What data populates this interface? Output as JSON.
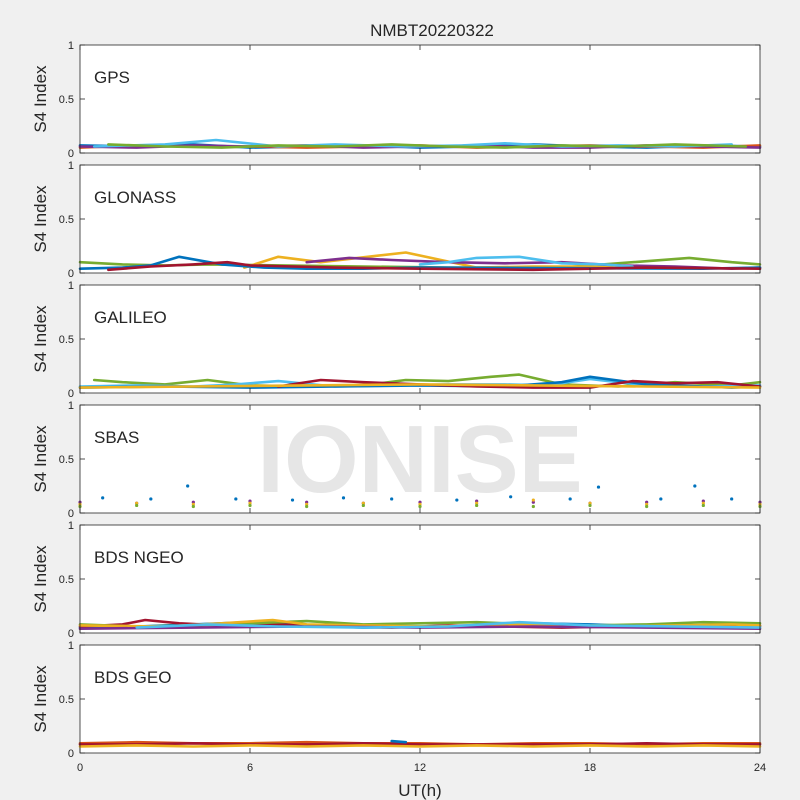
{
  "chart_data": {
    "type": "scatter",
    "title": "NMBT20220322",
    "xlabel": "UT(h)",
    "ylabel": "S4 Index",
    "xlim": [
      0,
      24
    ],
    "ylim": [
      0,
      1
    ],
    "xticks": [
      0,
      6,
      12,
      18,
      24
    ],
    "yticks": [
      0,
      0.5,
      1
    ],
    "x_tick_labels": [
      "0",
      "6",
      "12",
      "18",
      "24"
    ],
    "y_tick_labels": [
      "0",
      "0.5",
      "1"
    ],
    "watermark": "IONISE",
    "grid": false,
    "colors": [
      "#0072BD",
      "#D95319",
      "#EDB120",
      "#7E2F8E",
      "#77AC30",
      "#4DBEEE",
      "#A2142F"
    ],
    "panels": [
      {
        "name": "GPS",
        "series": [
          {
            "color": "#0072BD",
            "x": [
              0,
              2,
              4,
              6,
              8,
              10,
              12,
              14,
              16,
              18,
              20,
              22,
              24
            ],
            "y": [
              0.07,
              0.06,
              0.08,
              0.05,
              0.06,
              0.07,
              0.05,
              0.06,
              0.08,
              0.06,
              0.05,
              0.07,
              0.06
            ]
          },
          {
            "color": "#D95319",
            "x": [
              0,
              2,
              4,
              6,
              8,
              10,
              12,
              14,
              16,
              18,
              20,
              22,
              24
            ],
            "y": [
              0.05,
              0.07,
              0.06,
              0.06,
              0.05,
              0.06,
              0.07,
              0.05,
              0.06,
              0.07,
              0.06,
              0.05,
              0.07
            ]
          },
          {
            "color": "#7E2F8E",
            "x": [
              0,
              2,
              4,
              6,
              8,
              10,
              12,
              14,
              16,
              18,
              20,
              22,
              24
            ],
            "y": [
              0.06,
              0.05,
              0.07,
              0.06,
              0.07,
              0.05,
              0.06,
              0.07,
              0.05,
              0.05,
              0.07,
              0.06,
              0.05
            ]
          },
          {
            "color": "#4DBEEE",
            "x": [
              0.5,
              3,
              4.8,
              7,
              9,
              11.5,
              13.5,
              15,
              17,
              19,
              21,
              23
            ],
            "y": [
              0.06,
              0.08,
              0.12,
              0.06,
              0.08,
              0.06,
              0.07,
              0.09,
              0.06,
              0.07,
              0.06,
              0.08
            ]
          },
          {
            "color": "#77AC30",
            "x": [
              1,
              3,
              5,
              7,
              9,
              11,
              13,
              15,
              17,
              19,
              21,
              23.5
            ],
            "y": [
              0.08,
              0.06,
              0.05,
              0.07,
              0.06,
              0.08,
              0.06,
              0.05,
              0.07,
              0.06,
              0.08,
              0.06
            ]
          }
        ]
      },
      {
        "name": "GLONASS",
        "series": [
          {
            "color": "#77AC30",
            "x": [
              0,
              1.5,
              3,
              4.5,
              10,
              13,
              17,
              21.5,
              23,
              24
            ],
            "y": [
              0.1,
              0.08,
              0.07,
              0.08,
              0.06,
              0.05,
              0.05,
              0.14,
              0.1,
              0.08
            ]
          },
          {
            "color": "#EDB120",
            "x": [
              5.8,
              7,
              8.5,
              10.5,
              11.5,
              14,
              16,
              18,
              20
            ],
            "y": [
              0.05,
              0.15,
              0.1,
              0.16,
              0.19,
              0.05,
              0.06,
              0.06,
              0.05
            ]
          },
          {
            "color": "#7E2F8E",
            "x": [
              8,
              9.5,
              11,
              13,
              15,
              17,
              19,
              21,
              23,
              24
            ],
            "y": [
              0.1,
              0.14,
              0.12,
              0.1,
              0.09,
              0.1,
              0.07,
              0.06,
              0.04,
              0.05
            ]
          },
          {
            "color": "#4DBEEE",
            "x": [
              12,
              13,
              14,
              15.5,
              17,
              18.5,
              19.5
            ],
            "y": [
              0.08,
              0.1,
              0.14,
              0.15,
              0.09,
              0.08,
              0.06
            ]
          },
          {
            "color": "#0072BD",
            "x": [
              0,
              1.5,
              2.5,
              3.5,
              5,
              6.5,
              8,
              10,
              12,
              22,
              24
            ],
            "y": [
              0.04,
              0.05,
              0.07,
              0.15,
              0.08,
              0.05,
              0.04,
              0.04,
              0.05,
              0.04,
              0.05
            ]
          },
          {
            "color": "#A2142F",
            "x": [
              1,
              2.5,
              4,
              5.2,
              6,
              9,
              12,
              16,
              20,
              24
            ],
            "y": [
              0.03,
              0.06,
              0.08,
              0.1,
              0.07,
              0.05,
              0.04,
              0.03,
              0.05,
              0.04
            ]
          }
        ]
      },
      {
        "name": "GALILEO",
        "series": [
          {
            "color": "#77AC30",
            "x": [
              0.5,
              1.5,
              3,
              4.5,
              6,
              8,
              10,
              11.5,
              13,
              14.5,
              15.5,
              17,
              19,
              21,
              23,
              24
            ],
            "y": [
              0.12,
              0.1,
              0.08,
              0.12,
              0.07,
              0.06,
              0.07,
              0.12,
              0.11,
              0.15,
              0.17,
              0.08,
              0.06,
              0.1,
              0.07,
              0.1
            ]
          },
          {
            "color": "#4DBEEE",
            "x": [
              0,
              2,
              4,
              5.5,
              7,
              9,
              11,
              13,
              15,
              16.5,
              18,
              20,
              22,
              24
            ],
            "y": [
              0.06,
              0.07,
              0.06,
              0.08,
              0.11,
              0.06,
              0.07,
              0.08,
              0.08,
              0.07,
              0.13,
              0.07,
              0.06,
              0.07
            ]
          },
          {
            "color": "#0072BD",
            "x": [
              0,
              3,
              6,
              9,
              12,
              15,
              17,
              18,
              20,
              23,
              24
            ],
            "y": [
              0.05,
              0.06,
              0.05,
              0.06,
              0.07,
              0.06,
              0.1,
              0.15,
              0.08,
              0.05,
              0.06
            ]
          },
          {
            "color": "#A2142F",
            "x": [
              7,
              8.5,
              10,
              12,
              14,
              16,
              18,
              19.5,
              21,
              22.5,
              24
            ],
            "y": [
              0.06,
              0.12,
              0.1,
              0.08,
              0.06,
              0.05,
              0.05,
              0.11,
              0.09,
              0.1,
              0.06
            ]
          },
          {
            "color": "#EDB120",
            "x": [
              0,
              4,
              8,
              12,
              16,
              20,
              24
            ],
            "y": [
              0.05,
              0.06,
              0.07,
              0.08,
              0.07,
              0.06,
              0.05
            ]
          }
        ]
      },
      {
        "name": "SBAS",
        "series": [
          {
            "color": "#7E2F8E",
            "x": [
              0,
              2,
              4,
              6,
              8,
              10,
              12,
              14,
              16,
              18,
              20,
              22,
              24
            ],
            "y": [
              0.1,
              0.09,
              0.1,
              0.11,
              0.1,
              0.09,
              0.1,
              0.11,
              0.1,
              0.09,
              0.1,
              0.11,
              0.1
            ]
          },
          {
            "color": "#EDB120",
            "x": [
              0,
              2,
              4,
              6,
              8,
              10,
              12,
              14,
              16,
              18,
              20,
              22,
              24
            ],
            "y": [
              0.08,
              0.09,
              0.08,
              0.09,
              0.08,
              0.09,
              0.08,
              0.09,
              0.12,
              0.09,
              0.08,
              0.09,
              0.08
            ]
          },
          {
            "color": "#77AC30",
            "x": [
              0,
              2,
              4,
              6,
              8,
              10,
              12,
              14,
              16,
              18,
              20,
              22,
              24
            ],
            "y": [
              0.06,
              0.07,
              0.06,
              0.07,
              0.06,
              0.07,
              0.06,
              0.07,
              0.06,
              0.07,
              0.06,
              0.07,
              0.06
            ]
          },
          {
            "color": "#0072BD",
            "x": [
              0.8,
              2.5,
              3.8,
              5.5,
              7.5,
              9.3,
              11,
              13.3,
              15.2,
              17.3,
              18.3,
              20.5,
              21.7,
              23
            ],
            "y": [
              0.14,
              0.13,
              0.25,
              0.13,
              0.12,
              0.14,
              0.13,
              0.12,
              0.15,
              0.13,
              0.24,
              0.13,
              0.25,
              0.13
            ]
          }
        ],
        "marker_only": true
      },
      {
        "name": "BDS NGEO",
        "series": [
          {
            "color": "#0072BD",
            "x": [
              0,
              2,
              4,
              6,
              8,
              10,
              12,
              14,
              16,
              18,
              20,
              22,
              24
            ],
            "y": [
              0.05,
              0.06,
              0.08,
              0.1,
              0.07,
              0.05,
              0.06,
              0.07,
              0.09,
              0.08,
              0.06,
              0.07,
              0.06
            ]
          },
          {
            "color": "#A2142F",
            "x": [
              0,
              1.5,
              2.3,
              3.5,
              5,
              7,
              9,
              11,
              13,
              15,
              17,
              19,
              21,
              23,
              24
            ],
            "y": [
              0.06,
              0.08,
              0.12,
              0.09,
              0.07,
              0.08,
              0.06,
              0.05,
              0.07,
              0.06,
              0.05,
              0.06,
              0.07,
              0.06,
              0.07
            ]
          },
          {
            "color": "#77AC30",
            "x": [
              0,
              2,
              4,
              6,
              8,
              10,
              12,
              14,
              16,
              18,
              20,
              22,
              24
            ],
            "y": [
              0.08,
              0.06,
              0.07,
              0.09,
              0.11,
              0.08,
              0.09,
              0.1,
              0.08,
              0.07,
              0.08,
              0.1,
              0.09
            ]
          },
          {
            "color": "#EDB120",
            "x": [
              0,
              3,
              5,
              6.8,
              8,
              10,
              12.5,
              15,
              17,
              19,
              21,
              23,
              24
            ],
            "y": [
              0.07,
              0.06,
              0.09,
              0.12,
              0.08,
              0.07,
              0.06,
              0.08,
              0.07,
              0.06,
              0.07,
              0.08,
              0.07
            ]
          },
          {
            "color": "#7E2F8E",
            "x": [
              0,
              4,
              8,
              12,
              16,
              20,
              24
            ],
            "y": [
              0.04,
              0.05,
              0.06,
              0.05,
              0.06,
              0.05,
              0.04
            ]
          },
          {
            "color": "#4DBEEE",
            "x": [
              2,
              4.5,
              7,
              10,
              13,
              15.5,
              18,
              21,
              24
            ],
            "y": [
              0.05,
              0.08,
              0.06,
              0.05,
              0.06,
              0.1,
              0.07,
              0.06,
              0.05
            ]
          }
        ]
      },
      {
        "name": "BDS GEO",
        "series": [
          {
            "color": "#D95319",
            "x": [
              0,
              2,
              4,
              6,
              8,
              10,
              12,
              14,
              16,
              18,
              20,
              22,
              24
            ],
            "y": [
              0.09,
              0.1,
              0.09,
              0.09,
              0.1,
              0.09,
              0.09,
              0.08,
              0.09,
              0.09,
              0.08,
              0.09,
              0.09
            ]
          },
          {
            "color": "#A2142F",
            "x": [
              0,
              2,
              4,
              6,
              8,
              10,
              12,
              14,
              16,
              18,
              20,
              22,
              24
            ],
            "y": [
              0.08,
              0.08,
              0.09,
              0.08,
              0.08,
              0.09,
              0.08,
              0.08,
              0.08,
              0.08,
              0.09,
              0.08,
              0.08
            ]
          },
          {
            "color": "#EDB120",
            "x": [
              0,
              2,
              4,
              6,
              8,
              10,
              12,
              14,
              16,
              18,
              20,
              22,
              24
            ],
            "y": [
              0.06,
              0.07,
              0.06,
              0.07,
              0.06,
              0.07,
              0.06,
              0.07,
              0.06,
              0.07,
              0.06,
              0.07,
              0.06
            ]
          },
          {
            "color": "#0072BD",
            "x": [
              11,
              11.5
            ],
            "y": [
              0.11,
              0.1
            ]
          }
        ]
      }
    ]
  }
}
